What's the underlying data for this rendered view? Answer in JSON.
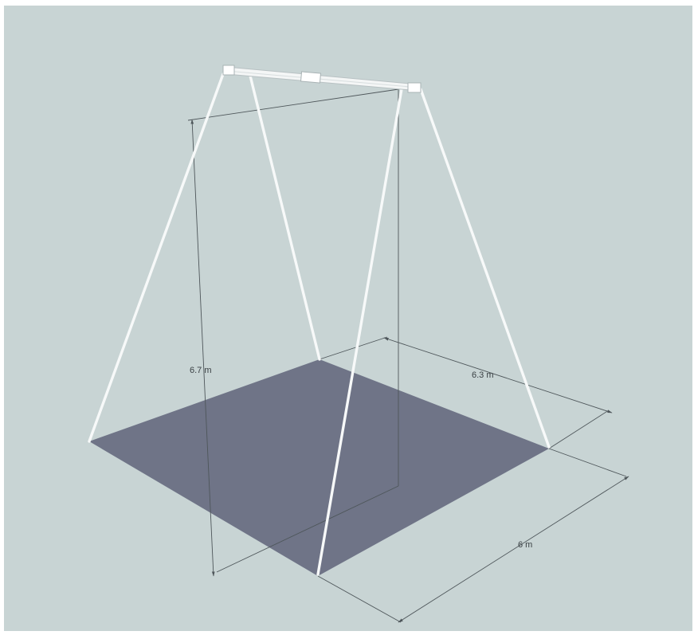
{
  "diagram": {
    "type": "3d-frame-dimensions",
    "colors": {
      "background": "#c8d4d4",
      "floor": "#6f7487",
      "frame": "#f7f9f9",
      "dimension_lines": "#4e565a",
      "text": "#3a4044"
    },
    "dimensions": {
      "height_label": "6.7 m",
      "depth_label": "6.3 m",
      "width_label": "6 m"
    }
  }
}
